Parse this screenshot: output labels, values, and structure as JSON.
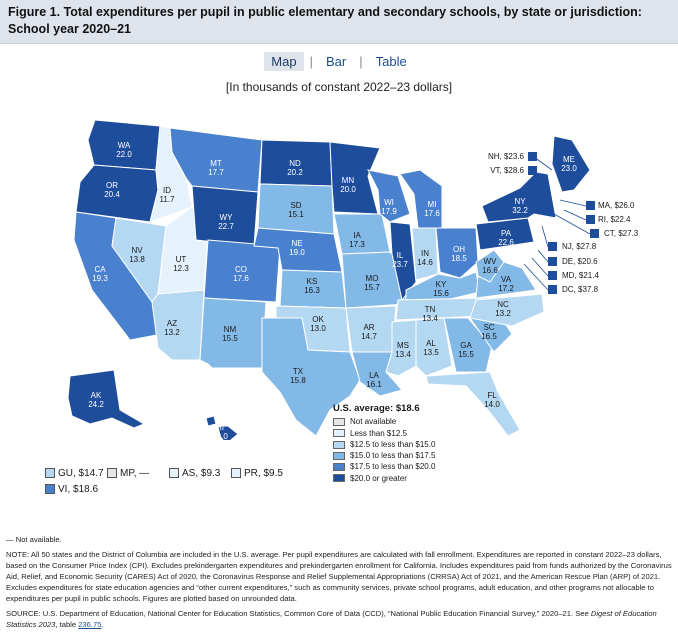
{
  "figure": {
    "title": "Figure 1. Total expenditures per pupil in public elementary and secondary schools, by state or jurisdiction: School year 2020–21",
    "subtitle": "[In thousands of constant 2022–23 dollars]"
  },
  "tabs": [
    {
      "label": "Map",
      "active": true
    },
    {
      "label": "Bar",
      "active": false
    },
    {
      "label": "Table",
      "active": false
    }
  ],
  "tab_separator": "|",
  "colors": {
    "not_available": "#e6e6e6",
    "bin1": "#e6f2fb",
    "bin2": "#b5d8f2",
    "bin3": "#83b9e6",
    "bin4": "#4a81cf",
    "bin5": "#1e4d9b",
    "outline": "#ffffff",
    "title_bg": "#dfe4ec",
    "link": "#1d4f91"
  },
  "chart_data": {
    "type": "choropleth",
    "unit": "thousands of constant 2022–23 dollars",
    "us_average_label": "U.S. average: $18.6",
    "us_average": 18.6,
    "legend": {
      "items": [
        {
          "label": "Not available",
          "bin": "not_available"
        },
        {
          "label": "Less than $12.5",
          "bin": "bin1"
        },
        {
          "label": "$12.5 to less than $15.0",
          "bin": "bin2"
        },
        {
          "label": "$15.0 to less than $17.5",
          "bin": "bin3"
        },
        {
          "label": "$17.5 to less than $20.0",
          "bin": "bin4"
        },
        {
          "label": "$20.0 or greater",
          "bin": "bin5"
        }
      ]
    },
    "states": [
      {
        "abbr": "WA",
        "value": 22.0,
        "display": "22.0"
      },
      {
        "abbr": "OR",
        "value": 20.4,
        "display": "20.4"
      },
      {
        "abbr": "CA",
        "value": 19.3,
        "display": "19.3"
      },
      {
        "abbr": "ID",
        "value": 11.7,
        "display": "11.7"
      },
      {
        "abbr": "NV",
        "value": 13.8,
        "display": "13.8"
      },
      {
        "abbr": "UT",
        "value": 12.3,
        "display": "12.3"
      },
      {
        "abbr": "AZ",
        "value": 13.2,
        "display": "13.2"
      },
      {
        "abbr": "MT",
        "value": 17.7,
        "display": "17.7"
      },
      {
        "abbr": "WY",
        "value": 22.7,
        "display": "22.7"
      },
      {
        "abbr": "CO",
        "value": 17.6,
        "display": "17.6"
      },
      {
        "abbr": "NM",
        "value": 15.5,
        "display": "15.5"
      },
      {
        "abbr": "ND",
        "value": 20.2,
        "display": "20.2"
      },
      {
        "abbr": "SD",
        "value": 15.1,
        "display": "15.1"
      },
      {
        "abbr": "NE",
        "value": 19.0,
        "display": "19.0"
      },
      {
        "abbr": "KS",
        "value": 16.3,
        "display": "16.3"
      },
      {
        "abbr": "OK",
        "value": 13.0,
        "display": "13.0"
      },
      {
        "abbr": "TX",
        "value": 15.8,
        "display": "15.8"
      },
      {
        "abbr": "MN",
        "value": 20.0,
        "display": "20.0"
      },
      {
        "abbr": "IA",
        "value": 17.3,
        "display": "17.3"
      },
      {
        "abbr": "MO",
        "value": 15.7,
        "display": "15.7"
      },
      {
        "abbr": "AR",
        "value": 14.7,
        "display": "14.7"
      },
      {
        "abbr": "LA",
        "value": 16.1,
        "display": "16.1"
      },
      {
        "abbr": "WI",
        "value": 17.9,
        "display": "17.9"
      },
      {
        "abbr": "IL",
        "value": 23.7,
        "display": "23.7"
      },
      {
        "abbr": "MI",
        "value": 17.6,
        "display": "17.6"
      },
      {
        "abbr": "IN",
        "value": 14.6,
        "display": "14.6"
      },
      {
        "abbr": "OH",
        "value": 18.5,
        "display": "18.5"
      },
      {
        "abbr": "KY",
        "value": 15.6,
        "display": "15.6"
      },
      {
        "abbr": "TN",
        "value": 13.4,
        "display": "13.4"
      },
      {
        "abbr": "MS",
        "value": 13.4,
        "display": "13.4"
      },
      {
        "abbr": "AL",
        "value": 13.5,
        "display": "13.5"
      },
      {
        "abbr": "GA",
        "value": 15.5,
        "display": "15.5"
      },
      {
        "abbr": "FL",
        "value": 14.0,
        "display": "14.0"
      },
      {
        "abbr": "SC",
        "value": 16.5,
        "display": "16.5"
      },
      {
        "abbr": "NC",
        "value": 13.2,
        "display": "13.2"
      },
      {
        "abbr": "VA",
        "value": 17.2,
        "display": "17.2"
      },
      {
        "abbr": "WV",
        "value": 16.6,
        "display": "16.6"
      },
      {
        "abbr": "PA",
        "value": 22.6,
        "display": "22.6"
      },
      {
        "abbr": "NY",
        "value": 32.2,
        "display": "32.2"
      },
      {
        "abbr": "ME",
        "value": 23.0,
        "display": "23.0"
      },
      {
        "abbr": "AK",
        "value": 24.2,
        "display": "24.2"
      },
      {
        "abbr": "HI",
        "value": 20.0,
        "display": "20.0"
      }
    ],
    "callouts": [
      {
        "label": "NH, $23.6",
        "value": 23.6
      },
      {
        "label": "VT, $28.6",
        "value": 28.6
      },
      {
        "label": "MA, $26.0",
        "value": 26.0
      },
      {
        "label": "RI, $22.4",
        "value": 22.4
      },
      {
        "label": "CT, $27.3",
        "value": 27.3
      },
      {
        "label": "NJ, $27.8",
        "value": 27.8
      },
      {
        "label": "DE, $20.6",
        "value": 20.6
      },
      {
        "label": "MD, $21.4",
        "value": 21.4
      },
      {
        "label": "DC, $37.8",
        "value": 37.8
      }
    ],
    "territories": [
      {
        "label": "GU, $14.7",
        "value": 14.7
      },
      {
        "label": "MP, —",
        "value": null
      },
      {
        "label": "AS, $9.3",
        "value": 9.3
      },
      {
        "label": "PR, $9.5",
        "value": 9.5
      },
      {
        "label": "VI, $18.6",
        "value": 18.6
      }
    ]
  },
  "notes": {
    "not_available": "— Not available.",
    "note": "NOTE: All 50 states and the District of Columbia are included in the U.S. average. Per pupil expenditures are calculated with fall enrollment. Expenditures are reported in constant 2022–23 dollars, based on the Consumer Price Index (CPI). Excludes prekindergarten expenditures and prekindergarten enrollment for California. Includes expenditures paid from funds authorized by the Coronavirus Aid, Relief, and Economic Security (CARES) Act of 2020, the Coronavirus Response and Relief Supplemental Appropriations (CRRSA) Act of 2021, and the American Rescue Plan (ARP) of 2021. Excludes expenditures for state education agencies and “other current expenditures,” such as community services, private school programs, adult education, and other programs not allocable to expenditures per pupil in public schools. Figures are plotted based on unrounded data.",
    "source_pre": "SOURCE: U.S. Department of Education, National Center for Education Statistics, Common Core of Data (CCD), “National Public Education Financial Survey,” 2020–21. See ",
    "source_italic": "Digest of Education Statistics 2023",
    "source_mid": ", table ",
    "source_link": "236.75",
    "source_end": "."
  }
}
